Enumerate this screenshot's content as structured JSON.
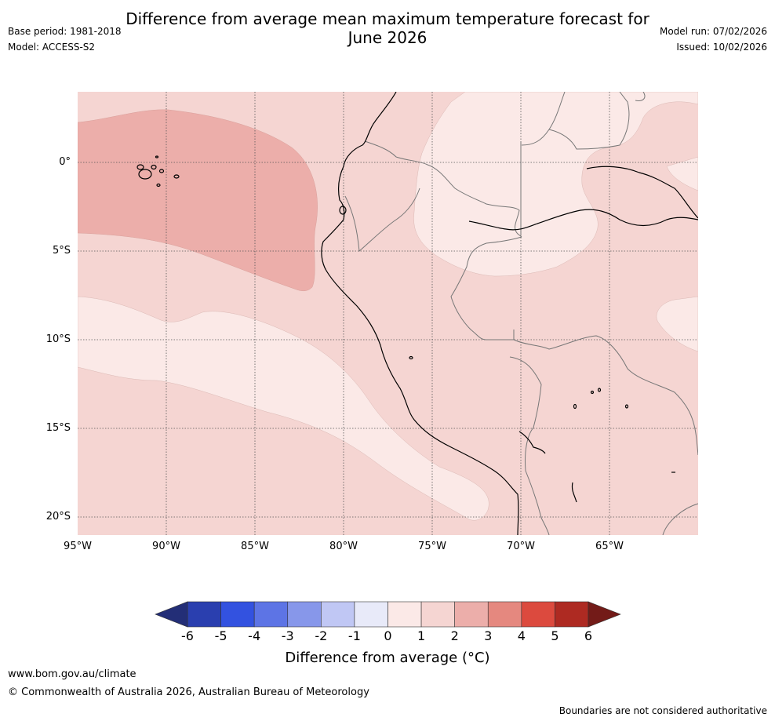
{
  "header": {
    "title_line1": "Difference from average mean maximum temperature forecast for",
    "title_line2": "June 2026",
    "base_period": "Base period: 1981-2018",
    "model": "Model: ACCESS-S2",
    "model_run": "Model run: 07/02/2026",
    "issued": "Issued: 10/02/2026"
  },
  "map": {
    "lat_labels": [
      "0°",
      "5°S",
      "10°S",
      "15°S",
      "20°S"
    ],
    "lon_labels": [
      "95°W",
      "90°W",
      "85°W",
      "80°W",
      "75°W",
      "70°W",
      "65°W"
    ],
    "extent": {
      "lon_min": -95,
      "lon_max": -60,
      "lat_min": -21,
      "lat_max": 4
    }
  },
  "colorbar": {
    "ticks": [
      "-6",
      "-5",
      "-4",
      "-3",
      "-2",
      "-1",
      "0",
      "1",
      "2",
      "3",
      "4",
      "5",
      "6"
    ],
    "label": "Difference from average (°C)",
    "colors": {
      "below_min": "#232e77",
      "bins": [
        "#2a3faf",
        "#3352e0",
        "#5d74e5",
        "#8797ea",
        "#c0c7f4",
        "#e8eaf9",
        "#fbe9e7",
        "#f5d5d2",
        "#ecaeaa",
        "#e5887f",
        "#dc4a3e",
        "#ae2a22"
      ],
      "above_max": "#731b18"
    }
  },
  "footer": {
    "url": "www.bom.gov.au/climate",
    "copyright": "© Commonwealth of Australia 2026, Australian Bureau of Meteorology",
    "disclaimer": "Boundaries are not considered authoritative"
  }
}
